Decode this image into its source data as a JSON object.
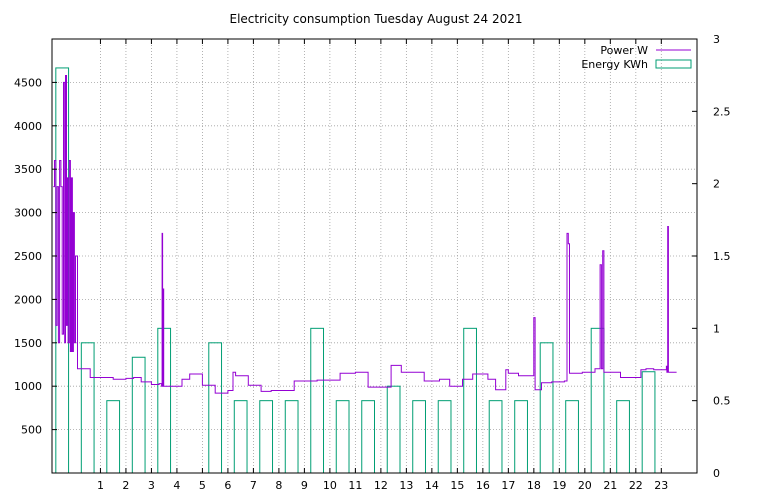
{
  "chart_data": {
    "type": "line",
    "title": "Electricity consumption Tuesday August 24 2021",
    "xlabel": "",
    "ylabel": "",
    "xlim": [
      -0.9,
      24.4
    ],
    "ylim": [
      0,
      5000
    ],
    "y2lim": [
      0,
      3
    ],
    "x_ticks": [
      1,
      2,
      3,
      4,
      5,
      6,
      7,
      8,
      9,
      10,
      11,
      12,
      13,
      14,
      15,
      16,
      17,
      18,
      19,
      20,
      21,
      22,
      23
    ],
    "y_ticks": [
      500,
      1000,
      1500,
      2000,
      2500,
      3000,
      3500,
      4000,
      4500
    ],
    "y2_ticks": [
      {
        "value": 0,
        "label": "0"
      },
      {
        "value": 0.5,
        "label": "0.5"
      },
      {
        "value": 1,
        "label": "1"
      },
      {
        "value": 1.5,
        "label": "1.5"
      },
      {
        "value": 2,
        "label": "2"
      },
      {
        "value": 2.5,
        "label": "2.5"
      },
      {
        "value": 3,
        "label": "3"
      }
    ],
    "grid": true,
    "legend_position": "top-right",
    "colors": {
      "power": "#9400d3",
      "energy": "#009e73",
      "grid": "#a0a0a0"
    },
    "series": [
      {
        "name": "Energy KWh",
        "axis": "y2",
        "type": "bar",
        "points": [
          {
            "x": -0.75,
            "y": 2.8
          },
          {
            "x": 0.25,
            "y": 0.9
          },
          {
            "x": 1.25,
            "y": 0.5
          },
          {
            "x": 2.25,
            "y": 0.8
          },
          {
            "x": 3.25,
            "y": 1.0
          },
          {
            "x": 4.25,
            "y": 0
          },
          {
            "x": 5.25,
            "y": 0.9
          },
          {
            "x": 6.25,
            "y": 0.5
          },
          {
            "x": 7.25,
            "y": 0.5
          },
          {
            "x": 8.25,
            "y": 0.5
          },
          {
            "x": 9.25,
            "y": 1.0
          },
          {
            "x": 10.25,
            "y": 0.5
          },
          {
            "x": 11.25,
            "y": 0.5
          },
          {
            "x": 12.25,
            "y": 0.6
          },
          {
            "x": 13.25,
            "y": 0.5
          },
          {
            "x": 14.25,
            "y": 0.5
          },
          {
            "x": 15.25,
            "y": 1.0
          },
          {
            "x": 16.25,
            "y": 0.5
          },
          {
            "x": 17.25,
            "y": 0.5
          },
          {
            "x": 18.25,
            "y": 0.9
          },
          {
            "x": 19.25,
            "y": 0.5
          },
          {
            "x": 20.25,
            "y": 1.0
          },
          {
            "x": 21.25,
            "y": 0.5
          },
          {
            "x": 22.25,
            "y": 0.7
          }
        ]
      },
      {
        "name": "Power W",
        "axis": "y",
        "type": "step-line",
        "points": [
          [
            -0.85,
            3300
          ],
          [
            -0.8,
            3600
          ],
          [
            -0.75,
            1700
          ],
          [
            -0.7,
            3300
          ],
          [
            -0.65,
            1500
          ],
          [
            -0.6,
            3600
          ],
          [
            -0.55,
            3300
          ],
          [
            -0.5,
            1600
          ],
          [
            -0.45,
            4500
          ],
          [
            -0.4,
            1500
          ],
          [
            -0.37,
            4580
          ],
          [
            -0.33,
            1700
          ],
          [
            -0.3,
            3400
          ],
          [
            -0.27,
            1500
          ],
          [
            -0.22,
            3600
          ],
          [
            -0.18,
            1400
          ],
          [
            -0.14,
            3400
          ],
          [
            -0.1,
            1400
          ],
          [
            -0.06,
            3000
          ],
          [
            -0.02,
            1500
          ],
          [
            0.02,
            2500
          ],
          [
            0.1,
            1200
          ],
          [
            0.5,
            1200
          ],
          [
            0.6,
            1100
          ],
          [
            1.0,
            1100
          ],
          [
            1.5,
            1080
          ],
          [
            2.0,
            1090
          ],
          [
            2.3,
            1100
          ],
          [
            2.6,
            1050
          ],
          [
            3.0,
            1020
          ],
          [
            3.3,
            1030
          ],
          [
            3.4,
            1000
          ],
          [
            3.42,
            2760
          ],
          [
            3.44,
            1000
          ],
          [
            3.46,
            2120
          ],
          [
            3.48,
            1000
          ],
          [
            4.0,
            1000
          ],
          [
            4.2,
            1080
          ],
          [
            4.5,
            1140
          ],
          [
            5.0,
            1010
          ],
          [
            5.5,
            920
          ],
          [
            6.0,
            950
          ],
          [
            6.2,
            1160
          ],
          [
            6.3,
            1120
          ],
          [
            6.8,
            1010
          ],
          [
            7.3,
            940
          ],
          [
            7.7,
            950
          ],
          [
            8.0,
            950
          ],
          [
            8.6,
            1060
          ],
          [
            9.0,
            1060
          ],
          [
            9.5,
            1070
          ],
          [
            9.8,
            1070
          ],
          [
            10.4,
            1150
          ],
          [
            11.0,
            1160
          ],
          [
            11.5,
            990
          ],
          [
            12.0,
            990
          ],
          [
            12.4,
            1240
          ],
          [
            12.8,
            1160
          ],
          [
            13.2,
            1160
          ],
          [
            13.7,
            1060
          ],
          [
            14.3,
            1080
          ],
          [
            14.7,
            1000
          ],
          [
            15.2,
            1080
          ],
          [
            15.6,
            1140
          ],
          [
            16.0,
            1140
          ],
          [
            16.2,
            1080
          ],
          [
            16.5,
            960
          ],
          [
            16.9,
            1190
          ],
          [
            17.0,
            1150
          ],
          [
            17.4,
            1120
          ],
          [
            17.9,
            1120
          ],
          [
            18.0,
            1790
          ],
          [
            18.05,
            960
          ],
          [
            18.3,
            1040
          ],
          [
            18.7,
            1050
          ],
          [
            19.2,
            1060
          ],
          [
            19.3,
            2760
          ],
          [
            19.35,
            2640
          ],
          [
            19.4,
            1150
          ],
          [
            19.9,
            1160
          ],
          [
            20.3,
            1160
          ],
          [
            20.4,
            1200
          ],
          [
            20.6,
            2400
          ],
          [
            20.65,
            1200
          ],
          [
            20.7,
            2560
          ],
          [
            20.75,
            1160
          ],
          [
            21.0,
            1160
          ],
          [
            21.4,
            1100
          ],
          [
            21.9,
            1100
          ],
          [
            22.2,
            1190
          ],
          [
            22.4,
            1200
          ],
          [
            22.7,
            1190
          ],
          [
            23.2,
            1230
          ],
          [
            23.22,
            1160
          ],
          [
            23.25,
            2840
          ],
          [
            23.28,
            1160
          ],
          [
            23.6,
            1160
          ]
        ]
      }
    ]
  }
}
